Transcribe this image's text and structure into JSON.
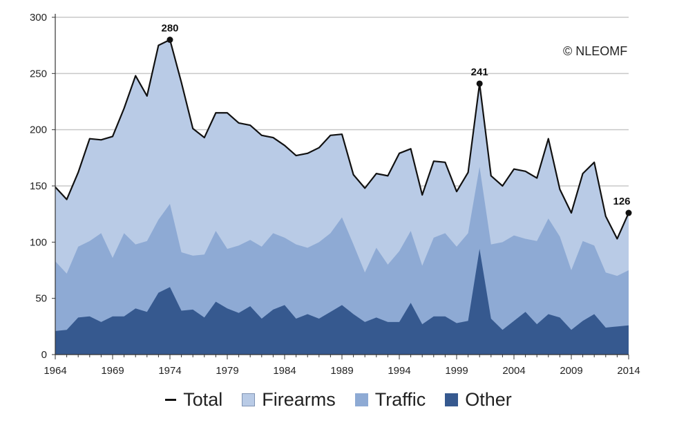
{
  "chart_data": {
    "type": "area",
    "x": [
      1964,
      1965,
      1966,
      1967,
      1968,
      1969,
      1970,
      1971,
      1972,
      1973,
      1974,
      1975,
      1976,
      1977,
      1978,
      1979,
      1980,
      1981,
      1982,
      1983,
      1984,
      1985,
      1986,
      1987,
      1988,
      1989,
      1990,
      1991,
      1992,
      1993,
      1994,
      1995,
      1996,
      1997,
      1998,
      1999,
      2000,
      2001,
      2002,
      2003,
      2004,
      2005,
      2006,
      2007,
      2008,
      2009,
      2010,
      2011,
      2012,
      2013,
      2014
    ],
    "series": [
      {
        "name": "Total",
        "values": [
          149,
          138,
          162,
          192,
          191,
          194,
          219,
          248,
          230,
          275,
          280,
          242,
          201,
          193,
          215,
          215,
          206,
          204,
          195,
          193,
          186,
          177,
          179,
          184,
          195,
          196,
          160,
          148,
          161,
          159,
          179,
          183,
          142,
          172,
          171,
          145,
          162,
          241,
          159,
          150,
          165,
          163,
          157,
          192,
          147,
          126,
          161,
          171,
          123,
          103,
          126
        ]
      },
      {
        "name": "Firearms",
        "values": [
          149,
          138,
          162,
          192,
          191,
          194,
          219,
          248,
          230,
          275,
          280,
          242,
          201,
          193,
          215,
          215,
          206,
          204,
          195,
          193,
          186,
          177,
          179,
          184,
          195,
          196,
          160,
          148,
          161,
          159,
          179,
          183,
          142,
          172,
          171,
          145,
          162,
          241,
          159,
          150,
          165,
          163,
          157,
          192,
          147,
          126,
          161,
          171,
          123,
          103,
          126
        ]
      },
      {
        "name": "Traffic",
        "values": [
          83,
          72,
          96,
          101,
          108,
          86,
          108,
          98,
          101,
          120,
          134,
          91,
          88,
          89,
          110,
          94,
          97,
          102,
          96,
          108,
          104,
          98,
          95,
          100,
          108,
          122,
          98,
          73,
          95,
          80,
          92,
          110,
          79,
          104,
          108,
          96,
          108,
          167,
          98,
          100,
          106,
          103,
          101,
          121,
          105,
          75,
          101,
          97,
          73,
          70,
          75
        ]
      },
      {
        "name": "Other",
        "values": [
          21,
          22,
          33,
          34,
          29,
          34,
          34,
          41,
          38,
          55,
          60,
          39,
          40,
          33,
          47,
          41,
          37,
          43,
          32,
          40,
          44,
          32,
          36,
          32,
          38,
          44,
          36,
          29,
          33,
          29,
          29,
          46,
          27,
          34,
          34,
          28,
          30,
          94,
          32,
          22,
          30,
          38,
          27,
          36,
          33,
          22,
          30,
          36,
          24,
          25,
          26
        ]
      }
    ],
    "annotations": [
      {
        "x": 1974,
        "y": 280,
        "label": "280"
      },
      {
        "x": 2001,
        "y": 241,
        "label": "241"
      },
      {
        "x": 2014,
        "y": 126,
        "label": "126"
      }
    ],
    "xticks": [
      1964,
      1969,
      1974,
      1979,
      1984,
      1989,
      1994,
      1999,
      2004,
      2009,
      2014
    ],
    "xtick_labels": [
      "1964",
      "1969",
      "1974",
      "1979",
      "1984",
      "1989",
      "1994",
      "1999",
      "2004",
      "2009",
      "2014"
    ],
    "yticks": [
      0,
      50,
      100,
      150,
      200,
      250,
      300
    ],
    "ytick_labels": [
      "0",
      "50",
      "100",
      "150",
      "200",
      "250",
      "300"
    ],
    "xlim": [
      1964,
      2014
    ],
    "ylim": [
      0,
      300
    ],
    "grid": "horizontal",
    "legend_position": "bottom",
    "watermark": "© NLEOMF",
    "title": "",
    "xlabel": "",
    "ylabel": "",
    "colors": {
      "firearms": "#b9cbe6",
      "traffic": "#8eaad4",
      "other": "#36598f",
      "total": "#111111",
      "grid": "#c8c8c8"
    }
  },
  "legend": [
    {
      "label": "Total"
    },
    {
      "label": "Firearms"
    },
    {
      "label": "Traffic"
    },
    {
      "label": "Other"
    }
  ]
}
